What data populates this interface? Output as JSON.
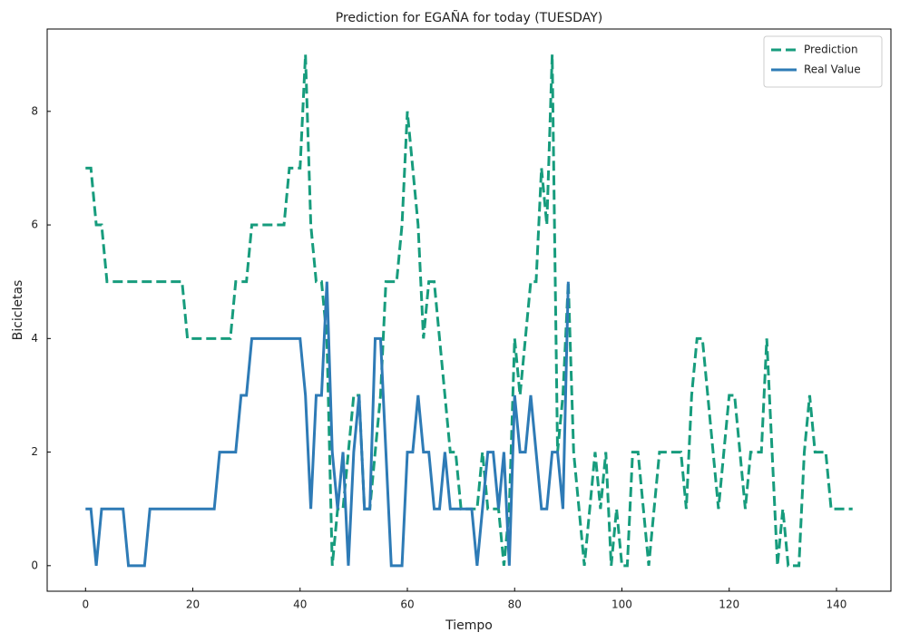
{
  "chart_data": {
    "type": "line",
    "title": "Prediction for EGAÑA for today (TUESDAY)",
    "xlabel": "Tiempo",
    "ylabel": "Bicicletas",
    "xlim": [
      -7.15,
      150.15
    ],
    "xticks": [
      0,
      20,
      40,
      60,
      80,
      100,
      120,
      140
    ],
    "ylim": [
      -0.45,
      9.45
    ],
    "yticks": [
      0,
      2,
      4,
      6,
      8
    ],
    "grid": false,
    "legend": "upper right",
    "series": [
      {
        "name": "Prediction",
        "color": "#179c7d",
        "dash": true,
        "x": [
          0,
          1,
          2,
          3,
          4,
          5,
          6,
          7,
          8,
          9,
          10,
          11,
          12,
          13,
          14,
          15,
          16,
          17,
          18,
          19,
          20,
          21,
          22,
          23,
          24,
          25,
          26,
          27,
          28,
          29,
          30,
          31,
          32,
          33,
          34,
          35,
          36,
          37,
          38,
          39,
          40,
          41,
          42,
          43,
          44,
          45,
          46,
          47,
          48,
          49,
          50,
          51,
          52,
          53,
          54,
          55,
          56,
          57,
          58,
          59,
          60,
          61,
          62,
          63,
          64,
          65,
          66,
          67,
          68,
          69,
          70,
          71,
          72,
          73,
          74,
          75,
          76,
          77,
          78,
          79,
          80,
          81,
          82,
          83,
          84,
          85,
          86,
          87,
          88,
          89,
          90,
          91,
          92,
          93,
          94,
          95,
          96,
          97,
          98,
          99,
          100,
          101,
          102,
          103,
          104,
          105,
          106,
          107,
          108,
          109,
          110,
          111,
          112,
          113,
          114,
          115,
          116,
          117,
          118,
          119,
          120,
          121,
          122,
          123,
          124,
          125,
          126,
          127,
          128,
          129,
          130,
          131,
          132,
          133,
          134,
          135,
          136,
          137,
          138,
          139,
          140,
          141,
          142,
          143
        ],
        "values": [
          7,
          7,
          6,
          6,
          5,
          5,
          5,
          5,
          5,
          5,
          5,
          5,
          5,
          5,
          5,
          5,
          5,
          5,
          5,
          4,
          4,
          4,
          4,
          4,
          4,
          4,
          4,
          4,
          5,
          5,
          5,
          6,
          6,
          6,
          6,
          6,
          6,
          6,
          7,
          7,
          7,
          9,
          6,
          5,
          5,
          4,
          0,
          1,
          1,
          2,
          3,
          3,
          1,
          1,
          2,
          3,
          5,
          5,
          5,
          6,
          8,
          7,
          6,
          4,
          5,
          5,
          4,
          3,
          2,
          2,
          1,
          1,
          1,
          1,
          2,
          1,
          1,
          1,
          0,
          1,
          4,
          3,
          4,
          5,
          5,
          7,
          6,
          9,
          2,
          3,
          5,
          2,
          1,
          0,
          1,
          2,
          1,
          2,
          0,
          1,
          0,
          0,
          2,
          2,
          1,
          0,
          1,
          2,
          2,
          2,
          2,
          2,
          1,
          3,
          4,
          4,
          3,
          2,
          1,
          2,
          3,
          3,
          2,
          1,
          2,
          2,
          2,
          4,
          2,
          0,
          1,
          0,
          0,
          0,
          2,
          3,
          2,
          2,
          2,
          1,
          1,
          1,
          1,
          1
        ]
      },
      {
        "name": "Real Value",
        "color": "#2e7bb6",
        "dash": false,
        "x": [
          0,
          1,
          2,
          3,
          4,
          5,
          6,
          7,
          8,
          9,
          10,
          11,
          12,
          13,
          14,
          15,
          16,
          17,
          18,
          19,
          20,
          21,
          22,
          23,
          24,
          25,
          26,
          27,
          28,
          29,
          30,
          31,
          32,
          33,
          34,
          35,
          36,
          37,
          38,
          39,
          40,
          41,
          42,
          43,
          44,
          45,
          46,
          47,
          48,
          49,
          50,
          51,
          52,
          53,
          54,
          55,
          56,
          57,
          58,
          59,
          60,
          61,
          62,
          63,
          64,
          65,
          66,
          67,
          68,
          69,
          70,
          71,
          72,
          73,
          74,
          75,
          76,
          77,
          78,
          79,
          80,
          81,
          82,
          83,
          84,
          85,
          86,
          87,
          88,
          89,
          90
        ],
        "values": [
          1,
          1,
          0,
          1,
          1,
          1,
          1,
          1,
          0,
          0,
          0,
          0,
          1,
          1,
          1,
          1,
          1,
          1,
          1,
          1,
          1,
          1,
          1,
          1,
          1,
          2,
          2,
          2,
          2,
          3,
          3,
          4,
          4,
          4,
          4,
          4,
          4,
          4,
          4,
          4,
          4,
          3,
          1,
          3,
          3,
          5,
          2,
          1,
          2,
          0,
          2,
          3,
          1,
          1,
          4,
          4,
          2,
          0,
          0,
          0,
          2,
          2,
          3,
          2,
          2,
          1,
          1,
          2,
          1,
          1,
          1,
          1,
          1,
          0,
          1,
          2,
          2,
          1,
          2,
          0,
          3,
          2,
          2,
          3,
          2,
          1,
          1,
          2,
          2,
          1,
          5
        ]
      }
    ]
  }
}
